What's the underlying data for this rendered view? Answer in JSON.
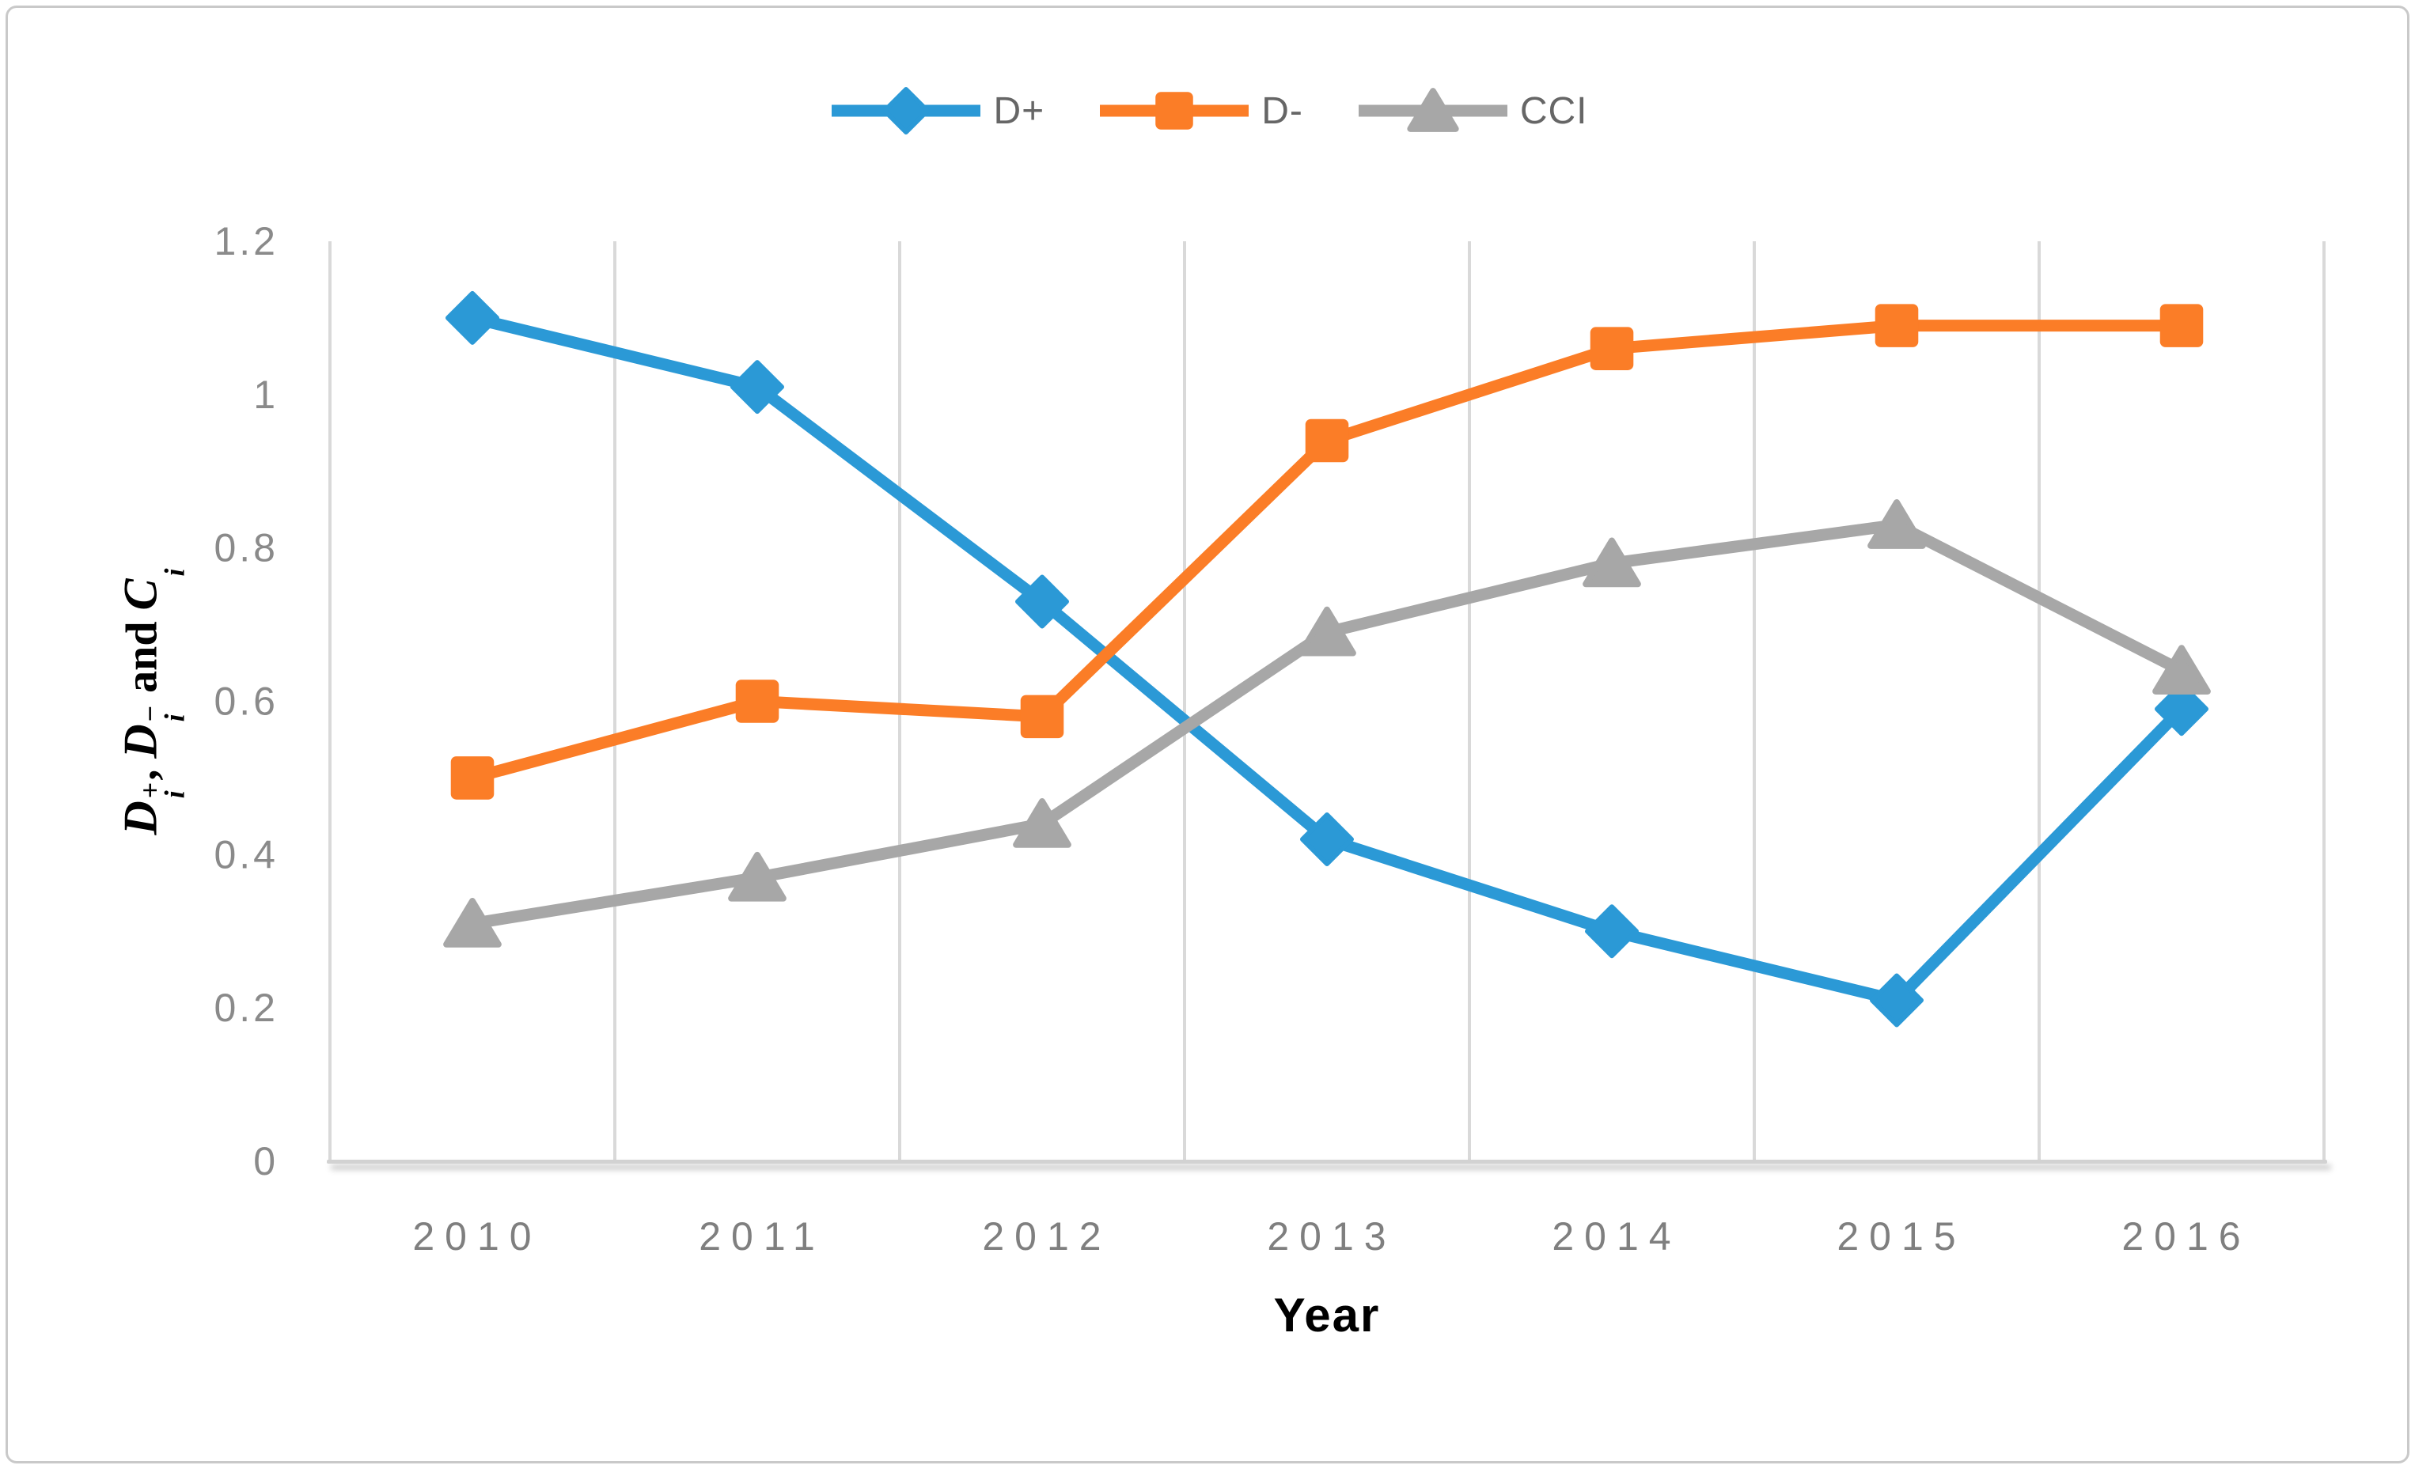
{
  "figure": {
    "background": "#ffffff",
    "border_color": "#c9c9c9",
    "gridline_color": "#d9d9d9",
    "axis_line_color": "#d2d2d2"
  },
  "legend": {
    "position": "top-center",
    "text_color": "#666666",
    "items": [
      {
        "label": "D+",
        "marker": "diamond",
        "color": "#2b99d6"
      },
      {
        "label": "D-",
        "marker": "square",
        "color": "#fb7d27"
      },
      {
        "label": "CCI",
        "marker": "triangle",
        "color": "#a7a7a7"
      }
    ]
  },
  "axes": {
    "x": {
      "title": "Year",
      "title_color": "#000000",
      "tick_labels": [
        "2010",
        "2011",
        "2012",
        "2013",
        "2014",
        "2015",
        "2016"
      ],
      "tick_color": "#7f7f7f"
    },
    "y": {
      "title_segments": [
        {
          "base": "D",
          "sup": "+",
          "sub": "i"
        },
        {
          "text": ", "
        },
        {
          "base": "D",
          "sup": "−",
          "sub": "i"
        },
        {
          "text": " and "
        },
        {
          "base": "C",
          "sup": "",
          "sub": "i"
        }
      ],
      "title_plain": "Di+, Di- and Ci",
      "tick_labels": [
        "0",
        "0.2",
        "0.4",
        "0.6",
        "0.8",
        "1",
        "1.2"
      ],
      "tick_values": [
        0,
        0.2,
        0.4,
        0.6,
        0.8,
        1,
        1.2
      ],
      "tick_color": "#8a8a8a",
      "range": [
        0,
        1.2
      ]
    }
  },
  "chart_data": {
    "type": "line",
    "categories": [
      "2010",
      "2011",
      "2012",
      "2013",
      "2014",
      "2015",
      "2016"
    ],
    "series": [
      {
        "name": "D+",
        "marker": "diamond",
        "color": "#2b99d6",
        "values": [
          1.1,
          1.01,
          0.73,
          0.42,
          0.3,
          0.21,
          0.59
        ]
      },
      {
        "name": "D-",
        "marker": "square",
        "color": "#fb7d27",
        "values": [
          0.5,
          0.6,
          0.58,
          0.94,
          1.06,
          1.09,
          1.09
        ]
      },
      {
        "name": "CCI",
        "marker": "triangle",
        "color": "#a7a7a7",
        "values": [
          0.31,
          0.37,
          0.44,
          0.69,
          0.78,
          0.83,
          0.64
        ]
      }
    ],
    "title": "",
    "xlabel": "Year",
    "ylabel": "Di+, Di- and Ci",
    "ylim": [
      0,
      1.2
    ],
    "grid": "vertical-only",
    "legend_position": "top-center"
  }
}
